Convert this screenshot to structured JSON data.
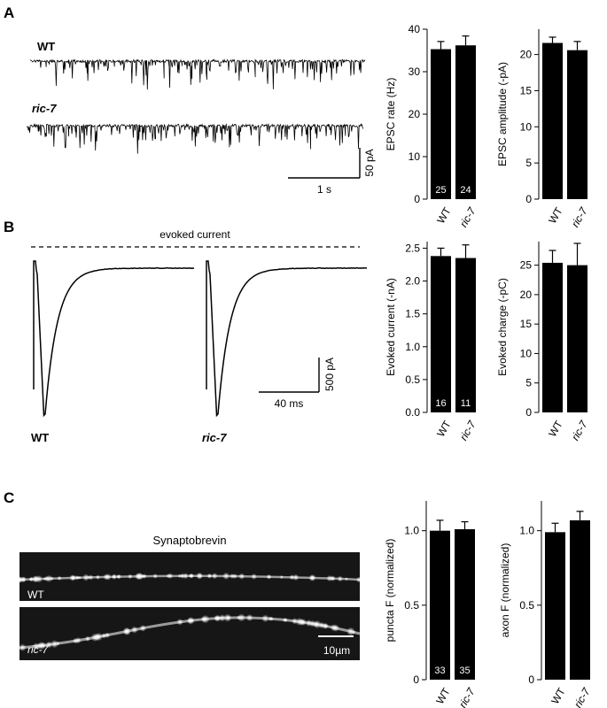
{
  "panels": {
    "A": {
      "letter": "A",
      "trace_labels": [
        "WT",
        "ric-7"
      ],
      "scale_time": "1 s",
      "scale_current": "50 pA"
    },
    "B": {
      "letter": "B",
      "title": "evoked current",
      "trace_labels": [
        "WT",
        "ric-7"
      ],
      "scale_time": "40 ms",
      "scale_current": "500 pA"
    },
    "C": {
      "letter": "C",
      "image_title": "Synaptobrevin",
      "image_labels": [
        "WT",
        "ric-7"
      ],
      "scale_bar": "10µm"
    }
  },
  "chart_data": [
    {
      "id": "epsc-rate",
      "panel": "A",
      "type": "bar",
      "categories": [
        "WT",
        "ric-7"
      ],
      "values": [
        35.3,
        36.2
      ],
      "errors": [
        1.8,
        2.2
      ],
      "n_labels": [
        "25",
        "24"
      ],
      "ylabel": "EPSC rate (Hz)",
      "ylim": [
        0,
        40
      ],
      "yticks": [
        0,
        10,
        20,
        30,
        40
      ],
      "ytick_labels": [
        "0",
        "10",
        "20",
        "30",
        "40"
      ]
    },
    {
      "id": "epsc-amplitude",
      "panel": "A",
      "type": "bar",
      "categories": [
        "WT",
        "ric-7"
      ],
      "values": [
        21.6,
        20.6
      ],
      "errors": [
        0.8,
        1.2
      ],
      "n_labels": [],
      "ylabel": "EPSC amplitude (-pA)",
      "ylim": [
        0,
        23.5
      ],
      "yticks": [
        0,
        5,
        10,
        15,
        20
      ],
      "ytick_labels": [
        "0",
        "5",
        "10",
        "15",
        "20"
      ]
    },
    {
      "id": "evoked-current",
      "panel": "B",
      "type": "bar",
      "categories": [
        "WT",
        "ric-7"
      ],
      "values": [
        2.38,
        2.35
      ],
      "errors": [
        0.12,
        0.2
      ],
      "n_labels": [
        "16",
        "11"
      ],
      "ylabel": "Evoked current (-nA)",
      "ylim": [
        0,
        2.6
      ],
      "yticks": [
        0,
        0.5,
        1,
        1.5,
        2,
        2.5
      ],
      "ytick_labels": [
        "0.0",
        "0.5",
        "1.0",
        "1.5",
        "2.0",
        "2.5"
      ]
    },
    {
      "id": "evoked-charge",
      "panel": "B",
      "type": "bar",
      "categories": [
        "WT",
        "ric-7"
      ],
      "values": [
        25.4,
        25.0
      ],
      "errors": [
        2.1,
        3.7
      ],
      "n_labels": [],
      "ylabel": "Evoked charge (-pC)",
      "ylim": [
        0,
        29
      ],
      "yticks": [
        0,
        5,
        10,
        15,
        20,
        25
      ],
      "ytick_labels": [
        "0",
        "5",
        "10",
        "15",
        "20",
        "25"
      ]
    },
    {
      "id": "puncta-f",
      "panel": "C",
      "type": "bar",
      "categories": [
        "WT",
        "ric-7"
      ],
      "values": [
        1.0,
        1.01
      ],
      "errors": [
        0.07,
        0.05
      ],
      "n_labels": [
        "33",
        "35"
      ],
      "ylabel": "puncta F (normalized)",
      "ylim": [
        0,
        1.2
      ],
      "yticks": [
        0,
        0.5,
        1.0
      ],
      "ytick_labels": [
        "0",
        "0.5",
        "1.0"
      ]
    },
    {
      "id": "axon-f",
      "panel": "C",
      "type": "bar",
      "categories": [
        "WT",
        "ric-7"
      ],
      "values": [
        0.99,
        1.07
      ],
      "errors": [
        0.06,
        0.06
      ],
      "n_labels": [],
      "ylabel": "axon F (normalized)",
      "ylim": [
        0,
        1.2
      ],
      "yticks": [
        0,
        0.5,
        1.0
      ],
      "ytick_labels": [
        "0",
        "0.5",
        "1.0"
      ]
    }
  ]
}
